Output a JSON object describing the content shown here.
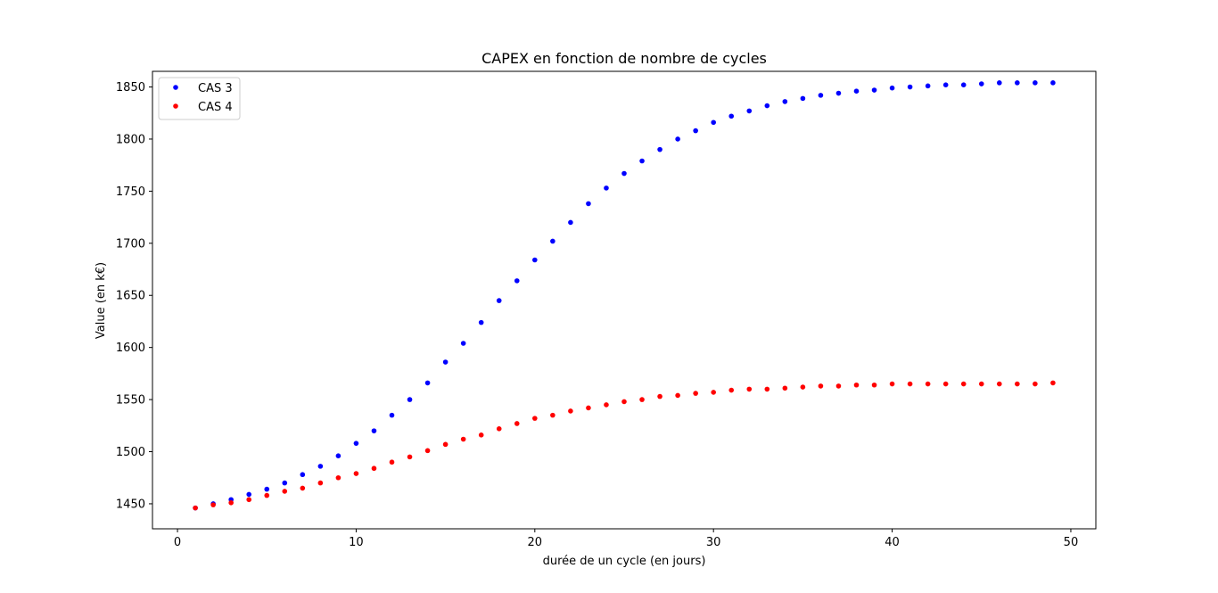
{
  "chart_data": {
    "type": "scatter",
    "title": "CAPEX en fonction de nombre de cycles",
    "xlabel": "durée de un cycle (en jours)",
    "ylabel": "Value (en k€)",
    "xlim": [
      -1.4,
      51.4
    ],
    "ylim": [
      1426,
      1865
    ],
    "xticks": [
      "0",
      "10",
      "20",
      "30",
      "40",
      "50"
    ],
    "yticks": [
      "1450",
      "1500",
      "1550",
      "1600",
      "1650",
      "1700",
      "1750",
      "1800",
      "1850"
    ],
    "grid": false,
    "legend_position": "top-left",
    "x": [
      1,
      2,
      3,
      4,
      5,
      6,
      7,
      8,
      9,
      10,
      11,
      12,
      13,
      14,
      15,
      16,
      17,
      18,
      19,
      20,
      21,
      22,
      23,
      24,
      25,
      26,
      27,
      28,
      29,
      30,
      31,
      32,
      33,
      34,
      35,
      36,
      37,
      38,
      39,
      40,
      41,
      42,
      43,
      44,
      45,
      46,
      47,
      48,
      49
    ],
    "series": [
      {
        "name": "CAS 3",
        "color": "#0000ff",
        "values": [
          1446,
          1450,
          1454,
          1459,
          1464,
          1470,
          1478,
          1486,
          1496,
          1508,
          1520,
          1535,
          1550,
          1566,
          1586,
          1604,
          1624,
          1645,
          1664,
          1684,
          1702,
          1720,
          1738,
          1753,
          1767,
          1779,
          1790,
          1800,
          1808,
          1816,
          1822,
          1827,
          1832,
          1836,
          1839,
          1842,
          1844,
          1846,
          1847,
          1849,
          1850,
          1851,
          1852,
          1852,
          1853,
          1854,
          1854,
          1854,
          1854
        ]
      },
      {
        "name": "CAS 4",
        "color": "#ff0000",
        "values": [
          1446,
          1449,
          1451,
          1454,
          1458,
          1462,
          1465,
          1470,
          1475,
          1479,
          1484,
          1490,
          1495,
          1501,
          1507,
          1512,
          1516,
          1522,
          1527,
          1532,
          1535,
          1539,
          1542,
          1545,
          1548,
          1550,
          1553,
          1554,
          1556,
          1557,
          1559,
          1560,
          1560,
          1561,
          1562,
          1563,
          1563,
          1564,
          1564,
          1565,
          1565,
          1565,
          1565,
          1565,
          1565,
          1565,
          1565,
          1565,
          1566
        ]
      }
    ]
  }
}
